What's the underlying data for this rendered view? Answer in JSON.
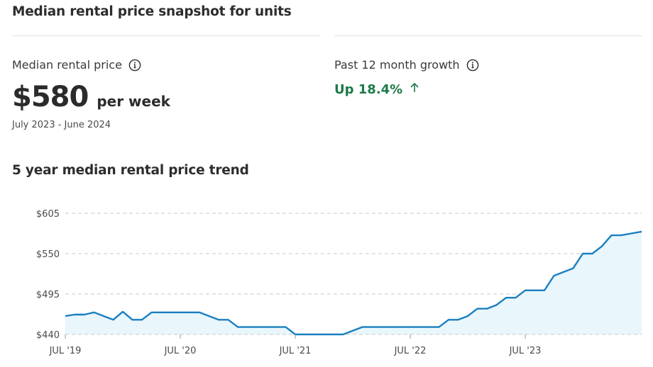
{
  "title": "Median rental price snapshot for units",
  "median": {
    "label": "Median rental price",
    "value": "$580",
    "unit": "per week",
    "period": "July 2023 - June 2024"
  },
  "growth": {
    "label": "Past 12 month growth",
    "value": "Up 18.4%",
    "direction_icon": "arrow-up-icon",
    "color": "#1d7a48"
  },
  "trend_title": "5 year median rental price trend",
  "colors": {
    "line": "#1a7fc1",
    "area": "#e9f6fc",
    "grid": "#c8c8c8"
  },
  "chart_data": {
    "type": "area",
    "x_tick_labels": [
      "JUL '19",
      "JUL '20",
      "JUL '21",
      "JUL '22",
      "JUL '23"
    ],
    "y_tick_labels": [
      "$605",
      "$550",
      "$495",
      "$440"
    ],
    "y_ticks": [
      605,
      550,
      495,
      440
    ],
    "ylim": [
      440,
      605
    ],
    "grid": "horizontal-dashed",
    "series": [
      {
        "x": [
          "2019-07",
          "2019-08",
          "2019-09",
          "2019-10",
          "2019-11",
          "2019-12",
          "2020-01",
          "2020-02",
          "2020-03",
          "2020-04",
          "2020-05",
          "2020-06",
          "2020-07",
          "2020-08",
          "2020-09",
          "2020-10",
          "2020-11",
          "2020-12",
          "2021-01",
          "2021-02",
          "2021-03",
          "2021-04",
          "2021-05",
          "2021-06",
          "2021-07",
          "2021-08",
          "2021-09",
          "2021-10",
          "2021-11",
          "2021-12",
          "2022-01",
          "2022-02",
          "2022-03",
          "2022-04",
          "2022-05",
          "2022-06",
          "2022-07",
          "2022-08",
          "2022-09",
          "2022-10",
          "2022-11",
          "2022-12",
          "2023-01",
          "2023-02",
          "2023-03",
          "2023-04",
          "2023-05",
          "2023-06",
          "2023-07",
          "2023-08",
          "2023-09",
          "2023-10",
          "2023-11",
          "2023-12",
          "2024-01",
          "2024-02",
          "2024-03",
          "2024-04",
          "2024-05",
          "2024-06"
        ],
        "values": [
          465,
          467,
          467,
          470,
          465,
          460,
          471,
          460,
          460,
          470,
          470,
          470,
          470,
          470,
          470,
          465,
          460,
          460,
          450,
          450,
          450,
          450,
          450,
          450,
          440,
          440,
          440,
          440,
          440,
          440,
          445,
          450,
          450,
          450,
          450,
          450,
          450,
          450,
          450,
          450,
          460,
          460,
          465,
          475,
          475,
          480,
          490,
          490,
          500,
          500,
          500,
          520,
          525,
          530,
          550,
          550,
          560,
          575,
          575,
          580
        ]
      }
    ]
  }
}
